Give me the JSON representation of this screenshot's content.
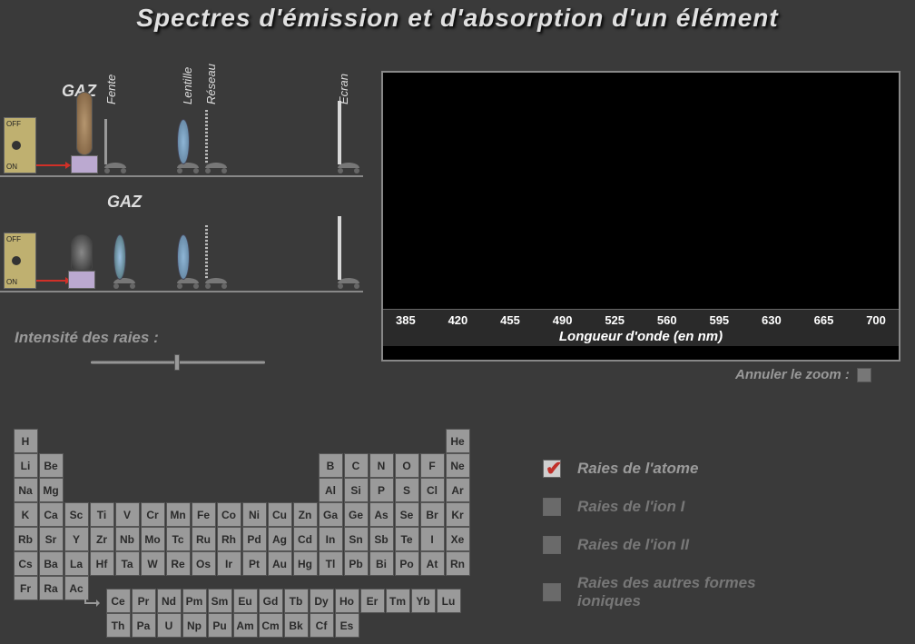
{
  "title": "Spectres d'émission et d'absorption d'un élément",
  "apparatus": {
    "gaz_label": "GAZ",
    "switch_off": "OFF",
    "switch_on": "ON",
    "optics_labels": {
      "fente": "Fente",
      "lentille": "Lentille",
      "reseau": "Réseau",
      "ecran": "Ecran"
    }
  },
  "intensity": {
    "label": "Intensité des raies :",
    "slider_value": 50,
    "slider_min": 0,
    "slider_max": 100
  },
  "spectrum": {
    "background_color": "#000000",
    "border_color": "#888888",
    "ticks": [
      "385",
      "420",
      "455",
      "490",
      "525",
      "560",
      "595",
      "630",
      "665",
      "700"
    ],
    "axis_label": "Longueur d'onde (en nm)",
    "xlim": [
      385,
      700
    ]
  },
  "zoom_reset": {
    "label": "Annuler le zoom :"
  },
  "periodic_table": {
    "cell_bg": "#9a9a9a",
    "cell_text": "#2a2a2a",
    "rows": [
      [
        "H",
        "",
        "",
        "",
        "",
        "",
        "",
        "",
        "",
        "",
        "",
        "",
        "",
        "",
        "",
        "",
        "",
        "He"
      ],
      [
        "Li",
        "Be",
        "",
        "",
        "",
        "",
        "",
        "",
        "",
        "",
        "",
        "",
        "B",
        "C",
        "N",
        "O",
        "F",
        "Ne"
      ],
      [
        "Na",
        "Mg",
        "",
        "",
        "",
        "",
        "",
        "",
        "",
        "",
        "",
        "",
        "Al",
        "Si",
        "P",
        "S",
        "Cl",
        "Ar"
      ],
      [
        "K",
        "Ca",
        "Sc",
        "Ti",
        "V",
        "Cr",
        "Mn",
        "Fe",
        "Co",
        "Ni",
        "Cu",
        "Zn",
        "Ga",
        "Ge",
        "As",
        "Se",
        "Br",
        "Kr"
      ],
      [
        "Rb",
        "Sr",
        "Y",
        "Zr",
        "Nb",
        "Mo",
        "Tc",
        "Ru",
        "Rh",
        "Pd",
        "Ag",
        "Cd",
        "In",
        "Sn",
        "Sb",
        "Te",
        "I",
        "Xe"
      ],
      [
        "Cs",
        "Ba",
        "La",
        "Hf",
        "Ta",
        "W",
        "Re",
        "Os",
        "Ir",
        "Pt",
        "Au",
        "Hg",
        "Tl",
        "Pb",
        "Bi",
        "Po",
        "At",
        "Rn"
      ],
      [
        "Fr",
        "Ra",
        "Ac",
        "",
        "",
        "",
        "",
        "",
        "",
        "",
        "",
        "",
        "",
        "",
        "",
        "",
        "",
        ""
      ]
    ],
    "f_block": [
      [
        "Ce",
        "Pr",
        "Nd",
        "Pm",
        "Sm",
        "Eu",
        "Gd",
        "Tb",
        "Dy",
        "Ho",
        "Er",
        "Tm",
        "Yb",
        "Lu"
      ],
      [
        "Th",
        "Pa",
        "U",
        "Np",
        "Pu",
        "Am",
        "Cm",
        "Bk",
        "Cf",
        "Es"
      ]
    ]
  },
  "legend": {
    "items": [
      {
        "label": "Raies de l'atome",
        "checked": true
      },
      {
        "label": "Raies de l'ion I",
        "checked": false
      },
      {
        "label": "Raies de l'ion II",
        "checked": false
      },
      {
        "label": "Raies des autres formes ioniques",
        "checked": false
      }
    ]
  },
  "colors": {
    "page_bg": "#3a3a3a",
    "title_text": "#e0e0e0",
    "switch_box": "#bfb070",
    "lens": "#8fb6d6",
    "arrow_red": "#d03028",
    "checked_mark": "#c0302a",
    "muted_text": "#777777"
  }
}
